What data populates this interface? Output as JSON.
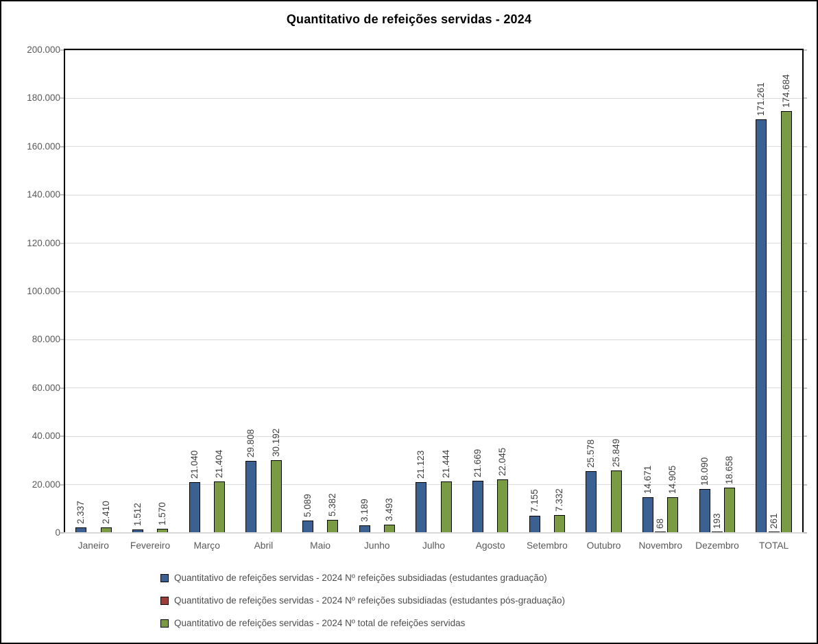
{
  "chart_data": {
    "type": "bar",
    "title": "Quantitativo de refeições servidas - 2024",
    "categories": [
      "Janeiro",
      "Fevereiro",
      "Março",
      "Abril",
      "Maio",
      "Junho",
      "Julho",
      "Agosto",
      "Setembro",
      "Outubro",
      "Novembro",
      "Dezembro",
      "TOTAL"
    ],
    "series": [
      {
        "name": "Quantitativo de refeições servidas - 2024 Nº refeições subsidiadas (estudantes graduação)",
        "color": "#3A6191",
        "values": [
          2337,
          1512,
          21040,
          29808,
          5089,
          3189,
          21123,
          21669,
          7155,
          25578,
          14671,
          18090,
          171261
        ],
        "labels": [
          "2.337",
          "1.512",
          "21.040",
          "29.808",
          "5.089",
          "3.189",
          "21.123",
          "21.669",
          "7.155",
          "25.578",
          "14.671",
          "18.090",
          "171.261"
        ]
      },
      {
        "name": "Quantitativo de refeições servidas - 2024 Nº refeições subsidiadas (estudantes pós-graduação)",
        "color": "#9E3D38",
        "values": [
          0,
          0,
          0,
          0,
          0,
          0,
          0,
          0,
          0,
          0,
          68,
          193,
          261
        ],
        "labels": [
          null,
          null,
          null,
          null,
          null,
          null,
          null,
          null,
          null,
          null,
          "68",
          "193",
          "261"
        ]
      },
      {
        "name": "Quantitativo de refeições servidas - 2024 Nº total de refeições servidas",
        "color": "#7A9A43",
        "values": [
          2410,
          1570,
          21404,
          30192,
          5382,
          3493,
          21444,
          22045,
          7332,
          25849,
          14905,
          18658,
          174684
        ],
        "labels": [
          "2.410",
          "1.570",
          "21.404",
          "30.192",
          "5.382",
          "3.493",
          "21.444",
          "22.045",
          "7.332",
          "25.849",
          "14.905",
          "18.658",
          "174.684"
        ]
      }
    ],
    "ylim": [
      0,
      200000
    ],
    "ytick_step": 20000,
    "ytick_labels": [
      "0",
      "20.000",
      "40.000",
      "60.000",
      "80.000",
      "100.000",
      "120.000",
      "140.000",
      "160.000",
      "180.000",
      "200.000"
    ],
    "grid": true,
    "legend_position": "bottom-left"
  },
  "colors": {
    "gridline": "#d9d9d9",
    "axis_text": "#595959",
    "data_label_text": "#404040",
    "bar_border": "#000000",
    "plot_border": "#000000"
  }
}
